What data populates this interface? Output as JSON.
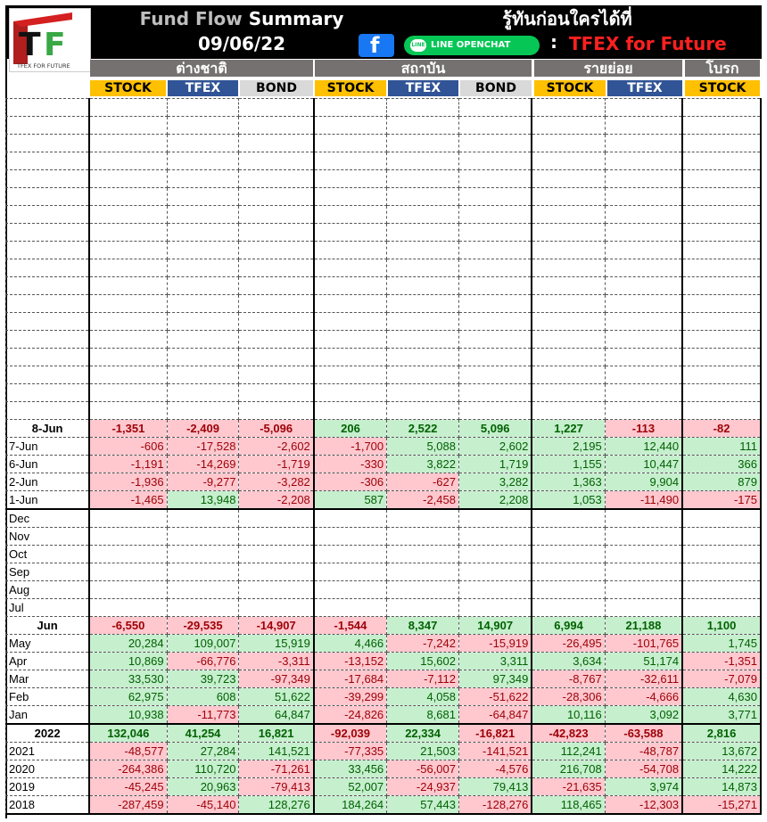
{
  "header": {
    "title_a": "Fund Flow",
    "title_b": "Summary",
    "date": "09/06/22",
    "tagline": "รู้ทันก่อนใครได้ที่",
    "facebook": "f",
    "line_badge": "LINE",
    "line_label": "LINE OPENCHAT",
    "colon": ":",
    "group_name": "TFEX for Future",
    "logo_letters": "TF",
    "logo_text": "TFEX FOR FUTURE"
  },
  "groups": [
    "ต่างชาติ",
    "สถาบัน",
    "รายย่อย",
    "โบรก"
  ],
  "subheaders": [
    "STOCK",
    "TFEX",
    "BOND",
    "STOCK",
    "TFEX",
    "BOND",
    "STOCK",
    "TFEX",
    "STOCK"
  ],
  "colors": {
    "negative_fill": "#ffc7ce",
    "negative_text": "#9c0006",
    "positive_fill": "#c6efce",
    "positive_text": "#006100",
    "stock": "#ffc000",
    "tfex": "#305496",
    "bond": "#d9d9d9"
  },
  "daily": [
    {
      "label": "8-Jun",
      "values": [
        "-1,351",
        "-2,409",
        "-5,096",
        "206",
        "2,522",
        "5,096",
        "1,227",
        "-113",
        "-82"
      ]
    },
    {
      "label": "7-Jun",
      "values": [
        "-606",
        "-17,528",
        "-2,602",
        "-1,700",
        "5,088",
        "2,602",
        "2,195",
        "12,440",
        "111"
      ]
    },
    {
      "label": "6-Jun",
      "values": [
        "-1,191",
        "-14,269",
        "-1,719",
        "-330",
        "3,822",
        "1,719",
        "1,155",
        "10,447",
        "366"
      ]
    },
    {
      "label": "2-Jun",
      "values": [
        "-1,936",
        "-9,277",
        "-3,282",
        "-306",
        "-627",
        "3,282",
        "1,363",
        "9,904",
        "879"
      ]
    },
    {
      "label": "1-Jun",
      "values": [
        "-1,465",
        "13,948",
        "-2,208",
        "587",
        "-2,458",
        "2,208",
        "1,053",
        "-11,490",
        "-175"
      ]
    }
  ],
  "empty_months": [
    "Dec",
    "Nov",
    "Oct",
    "Sep",
    "Aug",
    "Jul"
  ],
  "monthly": [
    {
      "label": "Jun",
      "values": [
        "-6,550",
        "-29,535",
        "-14,907",
        "-1,544",
        "8,347",
        "14,907",
        "6,994",
        "21,188",
        "1,100"
      ]
    },
    {
      "label": "May",
      "values": [
        "20,284",
        "109,007",
        "15,919",
        "4,466",
        "-7,242",
        "-15,919",
        "-26,495",
        "-101,765",
        "1,745"
      ]
    },
    {
      "label": "Apr",
      "values": [
        "10,869",
        "-66,776",
        "-3,311",
        "-13,152",
        "15,602",
        "3,311",
        "3,634",
        "51,174",
        "-1,351"
      ]
    },
    {
      "label": "Mar",
      "values": [
        "33,530",
        "39,723",
        "-97,349",
        "-17,684",
        "-7,112",
        "97,349",
        "-8,767",
        "-32,611",
        "-7,079"
      ]
    },
    {
      "label": "Feb",
      "values": [
        "62,975",
        "608",
        "51,622",
        "-39,299",
        "4,058",
        "-51,622",
        "-28,306",
        "-4,666",
        "4,630"
      ]
    },
    {
      "label": "Jan",
      "values": [
        "10,938",
        "-11,773",
        "64,847",
        "-24,826",
        "8,681",
        "-64,847",
        "10,116",
        "3,092",
        "3,771"
      ]
    }
  ],
  "yearly": [
    {
      "label": "2022",
      "values": [
        "132,046",
        "41,254",
        "16,821",
        "-92,039",
        "22,334",
        "-16,821",
        "-42,823",
        "-63,588",
        "2,816"
      ]
    },
    {
      "label": "2021",
      "values": [
        "-48,577",
        "27,284",
        "141,521",
        "-77,335",
        "21,503",
        "-141,521",
        "112,241",
        "-48,787",
        "13,672"
      ]
    },
    {
      "label": "2020",
      "values": [
        "-264,386",
        "110,720",
        "-71,261",
        "33,456",
        "-56,007",
        "-4,576",
        "216,708",
        "-54,708",
        "14,222"
      ]
    },
    {
      "label": "2019",
      "values": [
        "-45,245",
        "20,963",
        "-79,413",
        "52,007",
        "-24,937",
        "79,413",
        "-21,635",
        "3,974",
        "14,873"
      ]
    },
    {
      "label": "2018",
      "values": [
        "-287,459",
        "-45,140",
        "128,276",
        "184,264",
        "57,443",
        "-128,276",
        "118,465",
        "-12,303",
        "-15,271"
      ]
    }
  ]
}
